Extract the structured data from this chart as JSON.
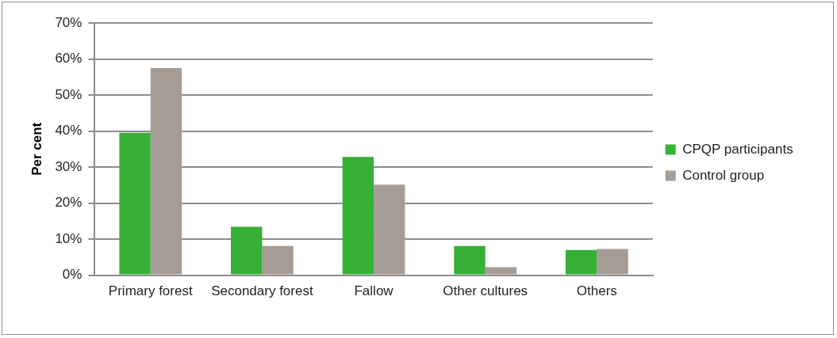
{
  "chart_data": {
    "type": "bar",
    "ylabel": "Per cent",
    "categories": [
      "Primary forest",
      "Secondary forest",
      "Fallow",
      "Other cultures",
      "Others"
    ],
    "series": [
      {
        "name": "CPQP participants",
        "color": "#36b036",
        "values": [
          39.5,
          13.4,
          32.8,
          8.1,
          7.0
        ]
      },
      {
        "name": "Control group",
        "color": "#a59c96",
        "values": [
          57.5,
          8.1,
          25.1,
          2.2,
          7.3
        ]
      }
    ],
    "ylim": [
      0,
      70
    ],
    "yticks": [
      {
        "value": 0,
        "label": "0%"
      },
      {
        "value": 10,
        "label": "10%"
      },
      {
        "value": 20,
        "label": "20%"
      },
      {
        "value": 30,
        "label": "30%"
      },
      {
        "value": 40,
        "label": "40%"
      },
      {
        "value": 50,
        "label": "50%"
      },
      {
        "value": 60,
        "label": "60%"
      },
      {
        "value": 70,
        "label": "70%"
      }
    ],
    "grid": "y",
    "legend": "right"
  }
}
